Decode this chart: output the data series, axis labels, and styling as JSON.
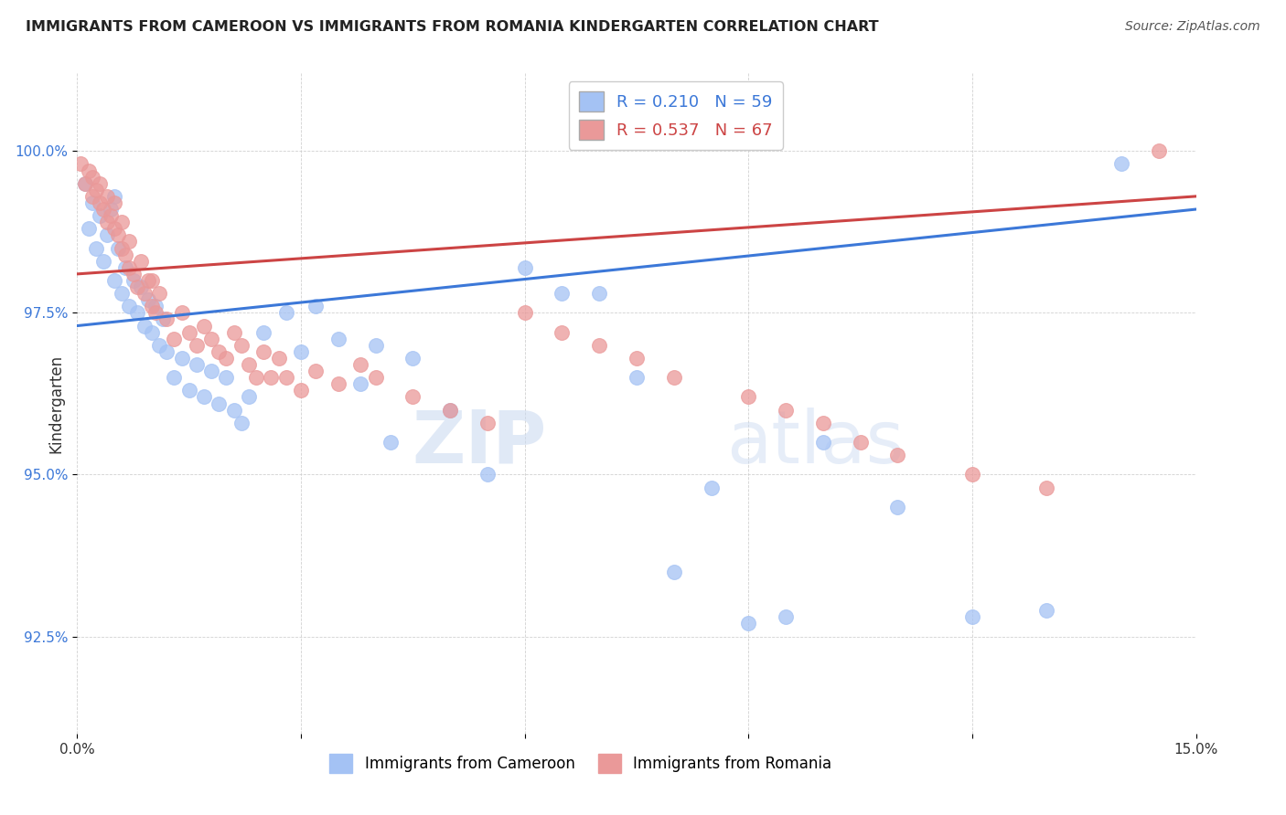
{
  "title": "IMMIGRANTS FROM CAMEROON VS IMMIGRANTS FROM ROMANIA KINDERGARTEN CORRELATION CHART",
  "source": "Source: ZipAtlas.com",
  "ylabel": "Kindergarten",
  "legend_label_blue": "Immigrants from Cameroon",
  "legend_label_pink": "Immigrants from Romania",
  "r_blue": 0.21,
  "n_blue": 59,
  "r_pink": 0.537,
  "n_pink": 67,
  "xlim": [
    0.0,
    15.0
  ],
  "ylim": [
    91.0,
    101.2
  ],
  "yticks": [
    92.5,
    95.0,
    97.5,
    100.0
  ],
  "xticks": [
    0.0,
    3.0,
    6.0,
    9.0,
    12.0,
    15.0
  ],
  "xtick_labels": [
    "0.0%",
    "",
    "",
    "",
    "",
    "15.0%"
  ],
  "ytick_labels": [
    "92.5%",
    "95.0%",
    "97.5%",
    "100.0%"
  ],
  "blue_color": "#a4c2f4",
  "pink_color": "#ea9999",
  "line_blue": "#3c78d8",
  "line_pink": "#cc4444",
  "watermark_zip": "ZIP",
  "watermark_atlas": "atlas",
  "blue_x": [
    0.1,
    0.15,
    0.2,
    0.25,
    0.3,
    0.35,
    0.4,
    0.45,
    0.5,
    0.5,
    0.55,
    0.6,
    0.65,
    0.7,
    0.75,
    0.8,
    0.85,
    0.9,
    0.95,
    1.0,
    1.05,
    1.1,
    1.15,
    1.2,
    1.3,
    1.4,
    1.5,
    1.6,
    1.7,
    1.8,
    1.9,
    2.0,
    2.1,
    2.2,
    2.3,
    2.5,
    2.8,
    3.0,
    3.2,
    3.5,
    3.8,
    4.0,
    4.2,
    4.5,
    5.0,
    5.5,
    6.0,
    6.5,
    7.0,
    7.5,
    8.0,
    8.5,
    9.0,
    9.5,
    10.0,
    11.0,
    12.0,
    13.0,
    14.0
  ],
  "blue_y": [
    99.5,
    98.8,
    99.2,
    98.5,
    99.0,
    98.3,
    98.7,
    99.1,
    99.3,
    98.0,
    98.5,
    97.8,
    98.2,
    97.6,
    98.0,
    97.5,
    97.9,
    97.3,
    97.7,
    97.2,
    97.6,
    97.0,
    97.4,
    96.9,
    96.5,
    96.8,
    96.3,
    96.7,
    96.2,
    96.6,
    96.1,
    96.5,
    96.0,
    95.8,
    96.2,
    97.2,
    97.5,
    96.9,
    97.6,
    97.1,
    96.4,
    97.0,
    95.5,
    96.8,
    96.0,
    95.0,
    98.2,
    97.8,
    97.8,
    96.5,
    93.5,
    94.8,
    92.7,
    92.8,
    95.5,
    94.5,
    92.8,
    92.9,
    99.8
  ],
  "pink_x": [
    0.05,
    0.1,
    0.15,
    0.2,
    0.2,
    0.25,
    0.3,
    0.3,
    0.35,
    0.4,
    0.4,
    0.45,
    0.5,
    0.5,
    0.55,
    0.6,
    0.6,
    0.65,
    0.7,
    0.7,
    0.75,
    0.8,
    0.85,
    0.9,
    0.95,
    1.0,
    1.0,
    1.05,
    1.1,
    1.2,
    1.3,
    1.4,
    1.5,
    1.6,
    1.7,
    1.8,
    1.9,
    2.0,
    2.1,
    2.2,
    2.3,
    2.4,
    2.5,
    2.6,
    2.7,
    2.8,
    3.0,
    3.2,
    3.5,
    3.8,
    4.0,
    4.5,
    5.0,
    5.5,
    6.0,
    6.5,
    7.0,
    7.5,
    8.0,
    9.0,
    9.5,
    10.0,
    10.5,
    11.0,
    12.0,
    13.0,
    14.5
  ],
  "pink_y": [
    99.8,
    99.5,
    99.7,
    99.3,
    99.6,
    99.4,
    99.2,
    99.5,
    99.1,
    98.9,
    99.3,
    99.0,
    98.8,
    99.2,
    98.7,
    98.5,
    98.9,
    98.4,
    98.2,
    98.6,
    98.1,
    97.9,
    98.3,
    97.8,
    98.0,
    97.6,
    98.0,
    97.5,
    97.8,
    97.4,
    97.1,
    97.5,
    97.2,
    97.0,
    97.3,
    97.1,
    96.9,
    96.8,
    97.2,
    97.0,
    96.7,
    96.5,
    96.9,
    96.5,
    96.8,
    96.5,
    96.3,
    96.6,
    96.4,
    96.7,
    96.5,
    96.2,
    96.0,
    95.8,
    97.5,
    97.2,
    97.0,
    96.8,
    96.5,
    96.2,
    96.0,
    95.8,
    95.5,
    95.3,
    95.0,
    94.8,
    100.0
  ],
  "blue_trendline_x": [
    0.0,
    15.0
  ],
  "blue_trendline_y": [
    97.3,
    99.1
  ],
  "pink_trendline_x": [
    0.0,
    15.0
  ],
  "pink_trendline_y": [
    98.1,
    99.3
  ]
}
